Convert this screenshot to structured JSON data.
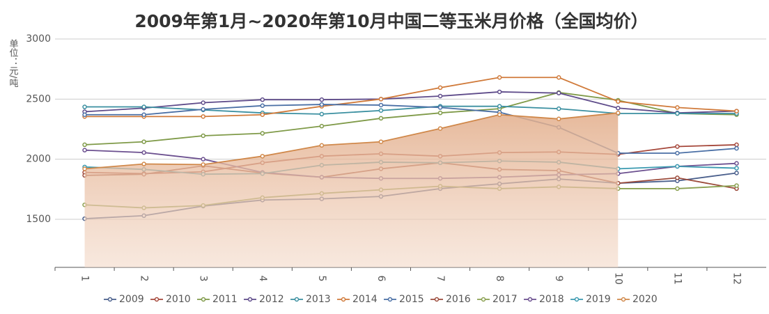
{
  "chart_data": {
    "type": "line",
    "title": "2009年第1月~2020年第10月中国二等玉米月价格（全国均价）",
    "y_label": "单位：元/吨",
    "categories": [
      "1",
      "2",
      "3",
      "4",
      "5",
      "6",
      "7",
      "8",
      "9",
      "10",
      "11",
      "12"
    ],
    "ylim": [
      1100,
      3000
    ],
    "yticks": [
      1500,
      2000,
      2500,
      3000
    ],
    "grid": true,
    "legend": "bottom",
    "series": [
      {
        "name": "2009",
        "color": "#4a5f8c",
        "values": [
          1505,
          1530,
          1610,
          1660,
          1670,
          1690,
          1755,
          1795,
          1835,
          1800,
          1820,
          1885
        ]
      },
      {
        "name": "2010",
        "color": "#a5473a",
        "values": [
          1890,
          1880,
          1895,
          1970,
          2025,
          2045,
          2025,
          2055,
          2060,
          2040,
          2105,
          2120
        ]
      },
      {
        "name": "2011",
        "color": "#7f9a48",
        "values": [
          2120,
          2145,
          2195,
          2215,
          2275,
          2340,
          2385,
          2420,
          2555,
          2490,
          2380,
          2370
        ]
      },
      {
        "name": "2012",
        "color": "#5e4b8a",
        "values": [
          2395,
          2425,
          2470,
          2495,
          2495,
          2500,
          2525,
          2560,
          2550,
          2425,
          2385,
          2400
        ]
      },
      {
        "name": "2013",
        "color": "#3a8fa0",
        "values": [
          2435,
          2435,
          2410,
          2385,
          2375,
          2405,
          2440,
          2440,
          2420,
          2380,
          2380,
          2380
        ]
      },
      {
        "name": "2014",
        "color": "#d07a3a",
        "values": [
          2355,
          2355,
          2355,
          2370,
          2440,
          2500,
          2595,
          2680,
          2680,
          2480,
          2430,
          2400
        ]
      },
      {
        "name": "2015",
        "color": "#4a6fa5",
        "values": [
          2370,
          2370,
          2415,
          2445,
          2455,
          2450,
          2430,
          2390,
          2265,
          2050,
          2050,
          2090
        ]
      },
      {
        "name": "2016",
        "color": "#9b4a3a",
        "values": [
          1865,
          1875,
          1945,
          1885,
          1850,
          1920,
          1970,
          1915,
          1905,
          1800,
          1845,
          1755
        ]
      },
      {
        "name": "2017",
        "color": "#8aa050",
        "values": [
          1620,
          1595,
          1615,
          1680,
          1715,
          1745,
          1775,
          1755,
          1770,
          1755,
          1755,
          1780
        ]
      },
      {
        "name": "2018",
        "color": "#6b4f8f",
        "values": [
          2075,
          2055,
          2000,
          1890,
          1850,
          1840,
          1840,
          1850,
          1870,
          1880,
          1940,
          1965
        ]
      },
      {
        "name": "2019",
        "color": "#3a9ab0",
        "values": [
          1935,
          1915,
          1875,
          1880,
          1950,
          1975,
          1970,
          1985,
          1975,
          1920,
          1940,
          1925
        ]
      },
      {
        "name": "2020",
        "color": "#d0884a",
        "area": true,
        "values": [
          1920,
          1960,
          1955,
          2025,
          2115,
          2145,
          2255,
          2370,
          2335,
          2385,
          null,
          null
        ]
      }
    ]
  }
}
